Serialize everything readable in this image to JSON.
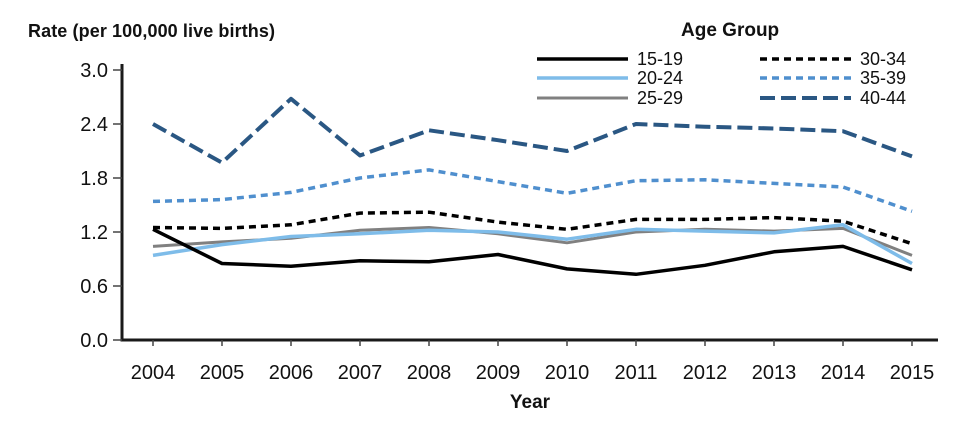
{
  "chart_data": {
    "type": "line",
    "title": "Rate (per 100,000 live births)",
    "ylabel": "Rate (per 100,000 live births)",
    "xlabel": "Year",
    "legend_title": "Age Group",
    "legend_position": "top-center",
    "grid": false,
    "ylim": [
      0.0,
      3.0
    ],
    "yticks": [
      0.0,
      0.6,
      1.2,
      1.8,
      2.4,
      3.0
    ],
    "x": [
      2004,
      2005,
      2006,
      2007,
      2008,
      2009,
      2010,
      2011,
      2012,
      2013,
      2014,
      2015
    ],
    "series": [
      {
        "name": "15-19",
        "color": "#000000",
        "dash": "solid",
        "width": 3.5,
        "values": [
          1.23,
          0.85,
          0.82,
          0.88,
          0.87,
          0.95,
          0.79,
          0.73,
          0.83,
          0.98,
          1.04,
          0.78
        ]
      },
      {
        "name": "20-24",
        "color": "#7EBCE9",
        "dash": "solid",
        "width": 3.5,
        "values": [
          0.94,
          1.06,
          1.15,
          1.18,
          1.22,
          1.2,
          1.12,
          1.23,
          1.21,
          1.19,
          1.28,
          0.85
        ]
      },
      {
        "name": "25-29",
        "color": "#808080",
        "dash": "solid",
        "width": 3,
        "values": [
          1.04,
          1.09,
          1.13,
          1.22,
          1.25,
          1.18,
          1.08,
          1.2,
          1.23,
          1.21,
          1.24,
          0.94
        ]
      },
      {
        "name": "30-34",
        "color": "#000000",
        "dash": "dashed-short",
        "width": 3.5,
        "values": [
          1.25,
          1.24,
          1.28,
          1.41,
          1.42,
          1.31,
          1.23,
          1.34,
          1.34,
          1.36,
          1.32,
          1.07
        ]
      },
      {
        "name": "35-39",
        "color": "#4F8FCE",
        "dash": "dashed-short",
        "width": 3.5,
        "values": [
          1.54,
          1.56,
          1.64,
          1.8,
          1.89,
          1.76,
          1.63,
          1.77,
          1.78,
          1.74,
          1.7,
          1.43
        ]
      },
      {
        "name": "40-44",
        "color": "#2A5783",
        "dash": "dashed-long",
        "width": 4,
        "values": [
          2.4,
          1.97,
          2.68,
          2.05,
          2.33,
          2.22,
          2.1,
          2.4,
          2.37,
          2.35,
          2.32,
          2.04
        ]
      }
    ],
    "axis_color": "#1a1a1a",
    "tick_color": "#444444"
  }
}
